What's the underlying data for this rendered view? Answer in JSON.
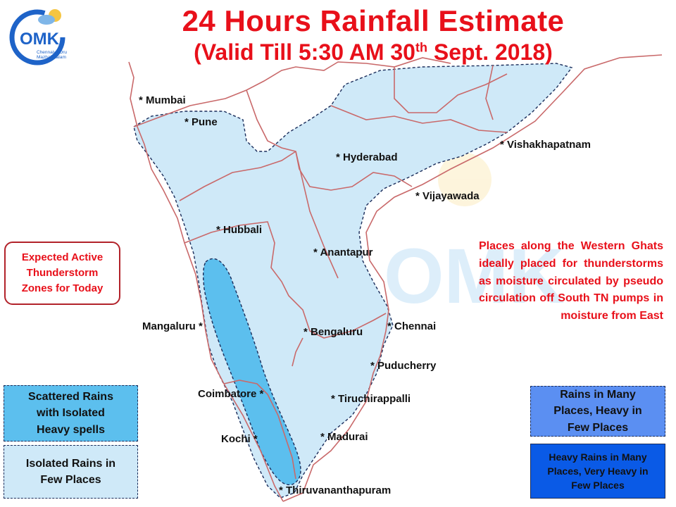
{
  "title": {
    "line1": "24 Hours Rainfall Estimate",
    "line2_pre": "(Valid Till 5:30 AM 30",
    "line2_sup": "th",
    "line2_post": " Sept. 2018)"
  },
  "logo": {
    "text": "OMK",
    "tagline_1": "Chennaiyil Oru",
    "tagline_2": "Mazhaikaalam"
  },
  "colors": {
    "title": "#e8101a",
    "zone_isolated": "#cfe9f8",
    "zone_scattered": "#5cbfee",
    "zone_many": "#5b8ff2",
    "zone_heavy": "#0a5ae6",
    "boundary": "#c9696a"
  },
  "cities": [
    {
      "name": "Mumbai",
      "label": "* Mumbai"
    },
    {
      "name": "Pune",
      "label": "* Pune"
    },
    {
      "name": "Hyderabad",
      "label": "* Hyderabad"
    },
    {
      "name": "Vishakhapatnam",
      "label": "* Vishakhapatnam"
    },
    {
      "name": "Vijayawada",
      "label": "* Vijayawada"
    },
    {
      "name": "Hubbali",
      "label": "* Hubbali"
    },
    {
      "name": "Anantapur",
      "label": "* Anantapur"
    },
    {
      "name": "Mangaluru",
      "label": "Mangaluru *"
    },
    {
      "name": "Bengaluru",
      "label": "* Bengaluru"
    },
    {
      "name": "Chennai",
      "label": "* Chennai"
    },
    {
      "name": "Puducherry",
      "label": "* Puducherry"
    },
    {
      "name": "Coimbatore",
      "label": "Coimbatore *"
    },
    {
      "name": "Tiruchirappalli",
      "label": "* Tiruchirappalli"
    },
    {
      "name": "Kochi",
      "label": "Kochi *"
    },
    {
      "name": "Madurai",
      "label": "* Madurai"
    },
    {
      "name": "Thiruvananthapuram",
      "label": "* Thiruvananthapuram"
    }
  ],
  "expected_box": {
    "line1": "Expected Active",
    "line2": "Thunderstorm",
    "line3": "Zones for Today"
  },
  "note": "Places along the Western Ghats ideally placed for thunderstorms as moisture circulated by pseudo circulation off South TN pumps in moisture from East",
  "legend": {
    "scattered": {
      "line1": "Scattered Rains",
      "line2": "with Isolated",
      "line3": "Heavy spells"
    },
    "isolated": {
      "line1": "Isolated Rains in",
      "line2": "Few Places"
    },
    "many": {
      "line1": "Rains in Many",
      "line2": "Places, Heavy in",
      "line3": "Few Places"
    },
    "heavy": {
      "line1": "Heavy Rains in Many",
      "line2": "Places, Very Heavy in",
      "line3": "Few Places"
    }
  }
}
